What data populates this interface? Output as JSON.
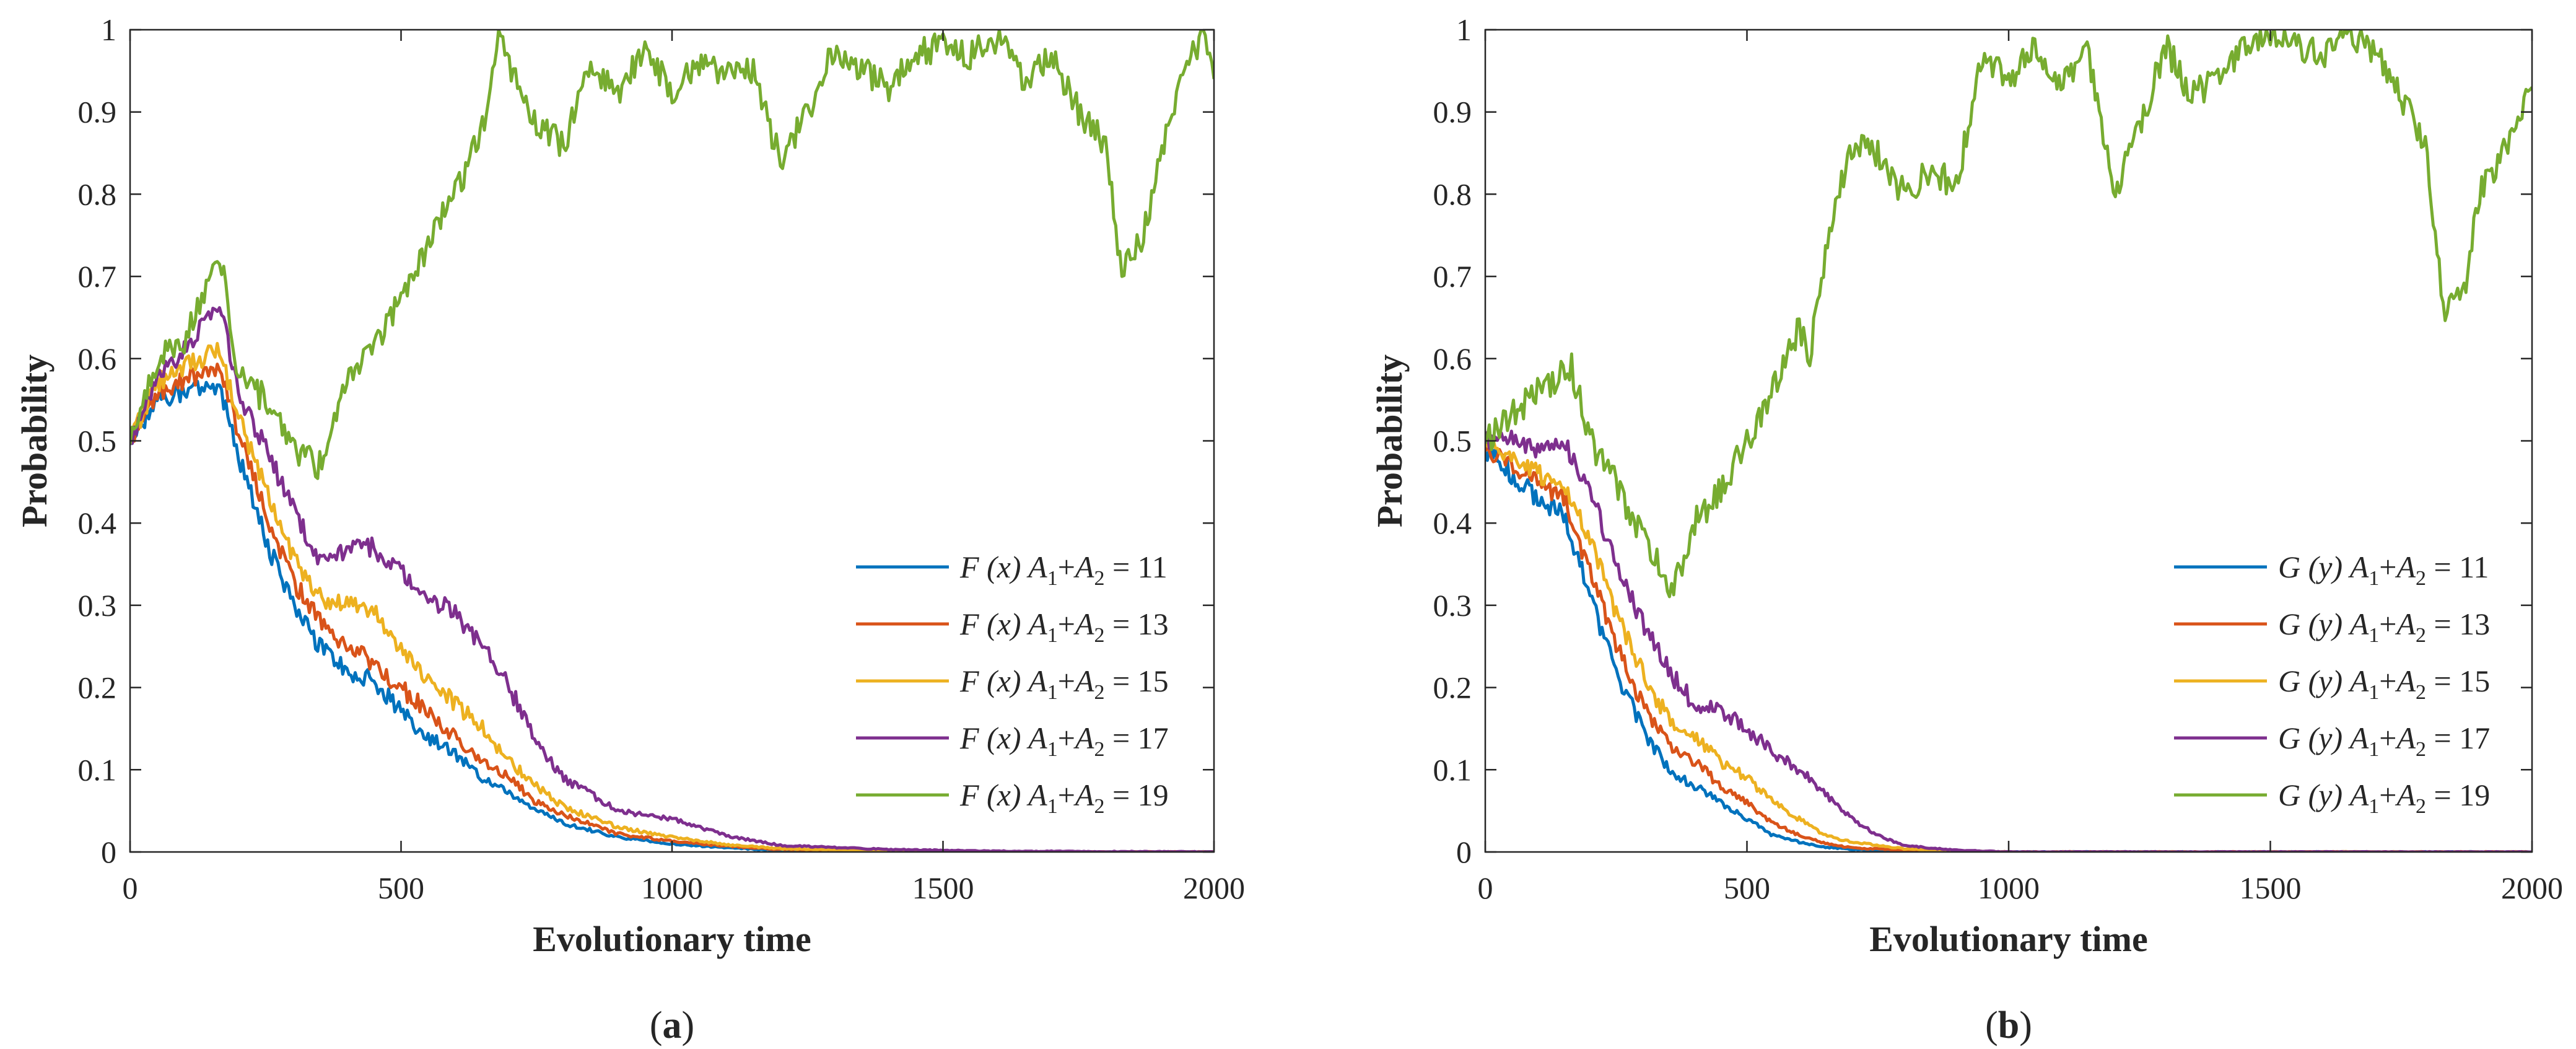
{
  "colors": {
    "series": [
      "#0072BD",
      "#D95319",
      "#EDB120",
      "#7E2F8E",
      "#77AC30"
    ],
    "axis": "#262626"
  },
  "chart_data": [
    {
      "type": "line",
      "panel": "(a)",
      "panel_open": "(",
      "panel_letter": "a",
      "panel_close": ")",
      "xlabel": "Evolutionary time",
      "ylabel": "Probability",
      "xlim": [
        0,
        2000
      ],
      "ylim": [
        0,
        1
      ],
      "xticks": [
        0,
        500,
        1000,
        1500,
        2000
      ],
      "xtick_labels": [
        "0",
        "500",
        "1000",
        "1500",
        "2000"
      ],
      "yticks": [
        0,
        0.1,
        0.2,
        0.3,
        0.4,
        0.5,
        0.6,
        0.7,
        0.8,
        0.9,
        1
      ],
      "ytick_labels": [
        "0",
        "0.1",
        "0.2",
        "0.3",
        "0.4",
        "0.5",
        "0.6",
        "0.7",
        "0.8",
        "0.9",
        "1"
      ],
      "legend_position": "lower-right",
      "series": [
        {
          "name": "F (x) A1+A2 = 11",
          "fn": "F",
          "arg": "(x)",
          "sum_value": "11",
          "x": [
            0,
            50,
            100,
            165,
            200,
            250,
            300,
            350,
            400,
            450,
            500,
            550,
            600,
            650,
            700,
            750,
            800,
            900,
            1000,
            1100,
            1200,
            1400,
            1600,
            2000
          ],
          "values": [
            0.5,
            0.55,
            0.56,
            0.57,
            0.48,
            0.38,
            0.3,
            0.25,
            0.22,
            0.21,
            0.17,
            0.14,
            0.12,
            0.09,
            0.07,
            0.05,
            0.035,
            0.018,
            0.01,
            0.005,
            0.002,
            0.001,
            0.0,
            0.0
          ]
        },
        {
          "name": "F (x) A1+A2 = 13",
          "fn": "F",
          "arg": "(x)",
          "sum_value": "13",
          "x": [
            0,
            50,
            100,
            165,
            200,
            250,
            300,
            350,
            400,
            450,
            500,
            550,
            600,
            650,
            700,
            750,
            800,
            900,
            1000,
            1100,
            1200,
            1400,
            1600,
            2000
          ],
          "values": [
            0.5,
            0.56,
            0.575,
            0.59,
            0.51,
            0.41,
            0.33,
            0.28,
            0.25,
            0.23,
            0.2,
            0.17,
            0.14,
            0.11,
            0.09,
            0.06,
            0.045,
            0.022,
            0.013,
            0.007,
            0.003,
            0.001,
            0.0,
            0.0
          ]
        },
        {
          "name": "F (x) A1+A2 = 15",
          "fn": "F",
          "arg": "(x)",
          "sum_value": "15",
          "x": [
            0,
            50,
            100,
            165,
            200,
            250,
            300,
            350,
            400,
            450,
            500,
            550,
            600,
            650,
            700,
            750,
            800,
            900,
            1000,
            1100,
            1200,
            1400,
            1600,
            2000
          ],
          "values": [
            0.5,
            0.57,
            0.59,
            0.61,
            0.53,
            0.44,
            0.36,
            0.31,
            0.3,
            0.29,
            0.25,
            0.21,
            0.18,
            0.15,
            0.11,
            0.08,
            0.055,
            0.03,
            0.018,
            0.009,
            0.004,
            0.001,
            0.0,
            0.0
          ]
        },
        {
          "name": "F (x) A1+A2 = 17",
          "fn": "F",
          "arg": "(x)",
          "sum_value": "17",
          "x": [
            0,
            50,
            100,
            165,
            200,
            250,
            300,
            350,
            400,
            450,
            500,
            550,
            600,
            650,
            700,
            750,
            800,
            900,
            1000,
            1100,
            1200,
            1400,
            1600,
            2000
          ],
          "values": [
            0.5,
            0.58,
            0.61,
            0.67,
            0.56,
            0.49,
            0.42,
            0.35,
            0.37,
            0.37,
            0.34,
            0.31,
            0.29,
            0.25,
            0.2,
            0.13,
            0.09,
            0.05,
            0.04,
            0.02,
            0.008,
            0.003,
            0.001,
            0.0
          ]
        },
        {
          "name": "F (x) A1+A2 = 19",
          "fn": "F",
          "arg": "(x)",
          "sum_value": "19",
          "x": [
            0,
            50,
            100,
            165,
            200,
            250,
            300,
            350,
            400,
            450,
            500,
            550,
            600,
            650,
            680,
            750,
            800,
            850,
            900,
            950,
            1000,
            1050,
            1100,
            1150,
            1200,
            1250,
            1300,
            1350,
            1400,
            1450,
            1500,
            1550,
            1600,
            1650,
            1700,
            1750,
            1800,
            1830,
            1870,
            1900,
            1950,
            1980,
            2000
          ],
          "values": [
            0.5,
            0.6,
            0.62,
            0.73,
            0.58,
            0.55,
            0.49,
            0.47,
            0.58,
            0.62,
            0.67,
            0.74,
            0.8,
            0.88,
            0.99,
            0.88,
            0.86,
            0.96,
            0.92,
            0.98,
            0.92,
            0.96,
            0.95,
            0.95,
            0.84,
            0.9,
            0.98,
            0.95,
            0.93,
            0.97,
            0.98,
            0.97,
            0.99,
            0.94,
            0.97,
            0.9,
            0.86,
            0.7,
            0.75,
            0.85,
            0.96,
            0.99,
            0.94
          ]
        }
      ]
    },
    {
      "type": "line",
      "panel": "(b)",
      "panel_open": "(",
      "panel_letter": "b",
      "panel_close": ")",
      "xlabel": "Evolutionary time",
      "ylabel": "Probability",
      "xlim": [
        0,
        2000
      ],
      "ylim": [
        0,
        1
      ],
      "xticks": [
        0,
        500,
        1000,
        1500,
        2000
      ],
      "xtick_labels": [
        "0",
        "500",
        "1000",
        "1500",
        "2000"
      ],
      "yticks": [
        0,
        0.1,
        0.2,
        0.3,
        0.4,
        0.5,
        0.6,
        0.7,
        0.8,
        0.9,
        1
      ],
      "ytick_labels": [
        "0",
        "0.1",
        "0.2",
        "0.3",
        "0.4",
        "0.5",
        "0.6",
        "0.7",
        "0.8",
        "0.9",
        "1"
      ],
      "legend_position": "lower-right",
      "series": [
        {
          "name": "G (y) A1+A2 = 11",
          "fn": "G",
          "arg": "(y)",
          "sum_value": "11",
          "x": [
            0,
            50,
            100,
            150,
            200,
            250,
            300,
            350,
            400,
            450,
            500,
            550,
            600,
            650,
            700,
            800,
            900,
            1000,
            1200,
            1400,
            2000
          ],
          "values": [
            0.49,
            0.46,
            0.43,
            0.41,
            0.31,
            0.22,
            0.15,
            0.1,
            0.08,
            0.06,
            0.04,
            0.02,
            0.012,
            0.006,
            0.003,
            0.001,
            0.0,
            0.0,
            0.0,
            0.0,
            0.0
          ]
        },
        {
          "name": "G (y) A1+A2 = 13",
          "fn": "G",
          "arg": "(y)",
          "sum_value": "13",
          "x": [
            0,
            50,
            100,
            150,
            200,
            250,
            300,
            350,
            400,
            450,
            500,
            550,
            600,
            650,
            700,
            800,
            900,
            1000,
            1200,
            1400,
            2000
          ],
          "values": [
            0.49,
            0.47,
            0.45,
            0.43,
            0.34,
            0.25,
            0.18,
            0.13,
            0.11,
            0.08,
            0.06,
            0.035,
            0.02,
            0.01,
            0.005,
            0.002,
            0.001,
            0.0,
            0.0,
            0.0,
            0.0
          ]
        },
        {
          "name": "G (y) A1+A2 = 15",
          "fn": "G",
          "arg": "(y)",
          "sum_value": "15",
          "x": [
            0,
            50,
            100,
            150,
            200,
            250,
            300,
            350,
            400,
            450,
            500,
            550,
            600,
            650,
            700,
            800,
            900,
            1000,
            1200,
            1400,
            2000
          ],
          "values": [
            0.5,
            0.48,
            0.46,
            0.45,
            0.38,
            0.29,
            0.22,
            0.16,
            0.14,
            0.11,
            0.09,
            0.06,
            0.04,
            0.02,
            0.012,
            0.004,
            0.001,
            0.0,
            0.0,
            0.0,
            0.0
          ]
        },
        {
          "name": "G (y) A1+A2 = 17",
          "fn": "G",
          "arg": "(y)",
          "sum_value": "17",
          "x": [
            0,
            50,
            100,
            150,
            200,
            250,
            300,
            350,
            400,
            450,
            500,
            550,
            600,
            650,
            700,
            750,
            800,
            900,
            1000,
            1200,
            2000
          ],
          "values": [
            0.5,
            0.5,
            0.49,
            0.5,
            0.44,
            0.35,
            0.28,
            0.22,
            0.18,
            0.17,
            0.15,
            0.12,
            0.1,
            0.07,
            0.04,
            0.02,
            0.008,
            0.002,
            0.0,
            0.0,
            0.0
          ]
        },
        {
          "name": "G (y) A1+A2 = 19",
          "fn": "G",
          "arg": "(y)",
          "sum_value": "19",
          "x": [
            0,
            50,
            100,
            165,
            200,
            250,
            300,
            360,
            400,
            450,
            500,
            550,
            600,
            620,
            650,
            700,
            750,
            800,
            850,
            900,
            950,
            1000,
            1050,
            1100,
            1150,
            1200,
            1250,
            1300,
            1350,
            1400,
            1450,
            1500,
            1550,
            1600,
            1650,
            1700,
            1750,
            1800,
            1830,
            1870,
            1900,
            1950,
            2000
          ],
          "values": [
            0.5,
            0.53,
            0.56,
            0.59,
            0.5,
            0.45,
            0.38,
            0.32,
            0.4,
            0.44,
            0.5,
            0.56,
            0.64,
            0.6,
            0.73,
            0.86,
            0.85,
            0.8,
            0.83,
            0.81,
            0.97,
            0.94,
            0.98,
            0.93,
            0.98,
            0.8,
            0.88,
            0.98,
            0.92,
            0.94,
            0.98,
            0.99,
            0.98,
            0.97,
            1.0,
            0.97,
            0.92,
            0.85,
            0.66,
            0.68,
            0.8,
            0.86,
            0.93
          ]
        }
      ]
    }
  ]
}
